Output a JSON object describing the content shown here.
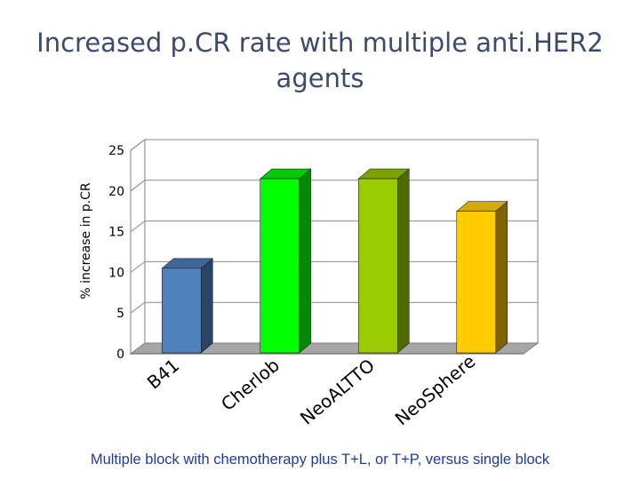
{
  "title_line1": "Increased p.CR rate with multiple anti.HER2",
  "title_line2": "agents",
  "caption": "Multiple block with chemotherapy plus T+L, or T+P, versus single block",
  "chart_data": {
    "type": "bar",
    "title": "Increased p.CR rate with multiple anti.HER2 agents",
    "xlabel": "",
    "ylabel": "% increase in p.CR",
    "ylim": [
      0,
      25
    ],
    "yticks": [
      0,
      5,
      10,
      15,
      20,
      25
    ],
    "grid": true,
    "legend": "none",
    "categories": [
      "B41",
      "Cherlob",
      "NeoALTTO",
      "NeoSphere"
    ],
    "values": [
      10.5,
      21.5,
      21.5,
      17.5
    ],
    "colors": [
      {
        "front": "#4f81bd",
        "side": "#2a4468",
        "top": "#3e6597"
      },
      {
        "front": "#00ff00",
        "side": "#008a00",
        "top": "#00cc00"
      },
      {
        "front": "#99cc00",
        "side": "#4f6a00",
        "top": "#7aa300"
      },
      {
        "front": "#ffcc00",
        "side": "#7d6400",
        "top": "#d4a900"
      }
    ]
  }
}
